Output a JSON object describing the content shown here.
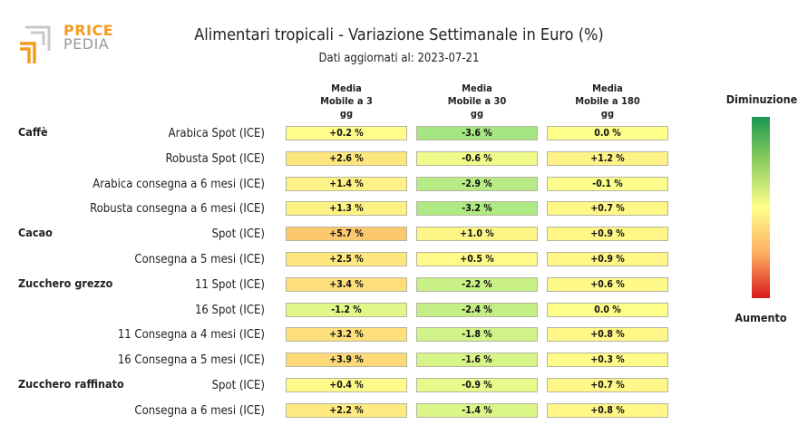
{
  "logo": {
    "price": "PRICE",
    "pedia": "PEDIA"
  },
  "colors": {
    "accent": "#f39c1f",
    "green": "#1a9850",
    "yellow": "#ffff8c",
    "red": "#d7191c"
  },
  "chart_data": {
    "type": "table",
    "title": "Alimentari tropicali - Variazione Settimanale in Euro (%)",
    "subtitle": "Dati aggiornati al: 2023-07-21",
    "columns": [
      "Media\nMobile a 3\ngg",
      "Media\nMobile a 30\ngg",
      "Media\nMobile a 180\ngg"
    ],
    "legend": {
      "top": "Diminuzione",
      "bottom": "Aumento"
    },
    "groups": [
      "Caffè",
      "Cacao",
      "Zucchero grezzo",
      "Zucchero raffinato"
    ],
    "rows": [
      {
        "group": "Caffè",
        "label": "Arabica Spot (ICE)",
        "values": [
          0.2,
          -3.6,
          0.0
        ],
        "texts": [
          "+0.2 %",
          "-3.6 %",
          "0.0 %"
        ]
      },
      {
        "group": "",
        "label": "Robusta Spot (ICE)",
        "values": [
          2.6,
          -0.6,
          1.2
        ],
        "texts": [
          "+2.6 %",
          "-0.6 %",
          "+1.2 %"
        ]
      },
      {
        "group": "",
        "label": "Arabica consegna a 6 mesi (ICE)",
        "values": [
          1.4,
          -2.9,
          -0.1
        ],
        "texts": [
          "+1.4 %",
          "-2.9 %",
          "-0.1 %"
        ]
      },
      {
        "group": "",
        "label": "Robusta consegna a 6 mesi (ICE)",
        "values": [
          1.3,
          -3.2,
          0.7
        ],
        "texts": [
          "+1.3 %",
          "-3.2 %",
          "+0.7 %"
        ]
      },
      {
        "group": "Cacao",
        "label": "Spot (ICE)",
        "values": [
          5.7,
          1.0,
          0.9
        ],
        "texts": [
          "+5.7 %",
          "+1.0 %",
          "+0.9 %"
        ]
      },
      {
        "group": "",
        "label": "Consegna a 5 mesi (ICE)",
        "values": [
          2.5,
          0.5,
          0.9
        ],
        "texts": [
          "+2.5 %",
          "+0.5 %",
          "+0.9 %"
        ]
      },
      {
        "group": "Zucchero grezzo",
        "label": "11 Spot (ICE)",
        "values": [
          3.4,
          -2.2,
          0.6
        ],
        "texts": [
          "+3.4 %",
          "-2.2 %",
          "+0.6 %"
        ]
      },
      {
        "group": "",
        "label": "16 Spot (ICE)",
        "values": [
          -1.2,
          -2.4,
          0.0
        ],
        "texts": [
          "-1.2 %",
          "-2.4 %",
          "0.0 %"
        ]
      },
      {
        "group": "",
        "label": "11 Consegna a 4 mesi (ICE)",
        "values": [
          3.2,
          -1.8,
          0.8
        ],
        "texts": [
          "+3.2 %",
          "-1.8 %",
          "+0.8 %"
        ]
      },
      {
        "group": "",
        "label": "16 Consegna a 5 mesi (ICE)",
        "values": [
          3.9,
          -1.6,
          0.3
        ],
        "texts": [
          "+3.9 %",
          "-1.6 %",
          "+0.3 %"
        ]
      },
      {
        "group": "Zucchero raffinato",
        "label": "Spot (ICE)",
        "values": [
          0.4,
          -0.9,
          0.7
        ],
        "texts": [
          "+0.4 %",
          "-0.9 %",
          "+0.7 %"
        ]
      },
      {
        "group": "",
        "label": "Consegna a 6 mesi (ICE)",
        "values": [
          2.2,
          -1.4,
          0.8
        ],
        "texts": [
          "+2.2 %",
          "-1.4 %",
          "+0.8 %"
        ]
      }
    ]
  }
}
